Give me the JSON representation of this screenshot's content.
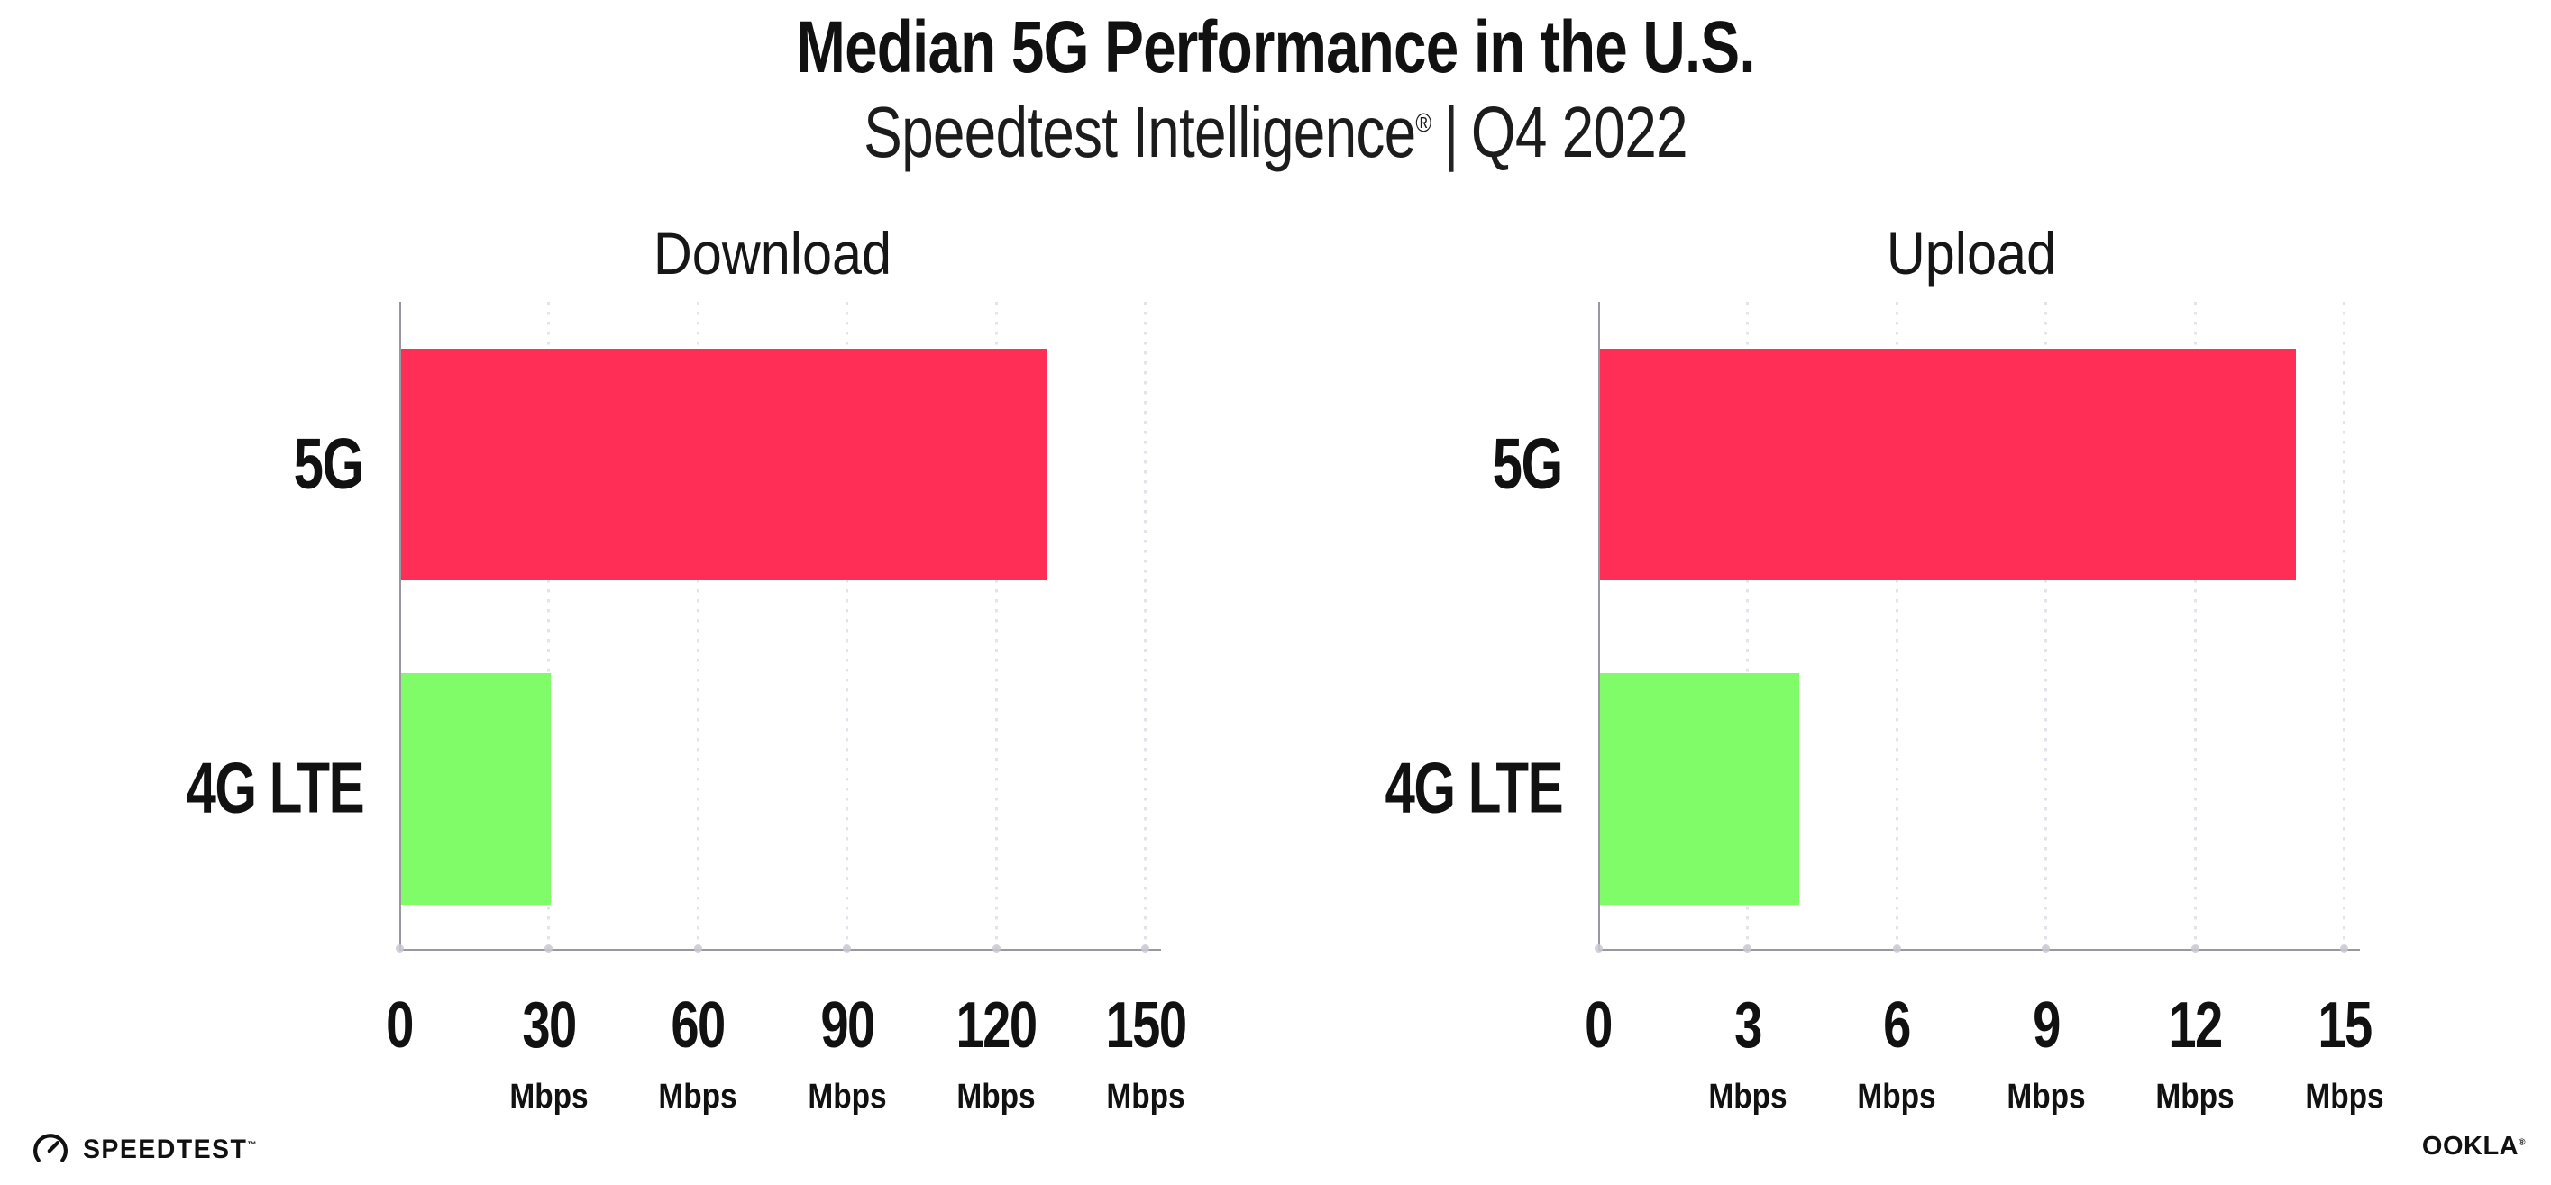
{
  "header": {
    "title": "Median 5G Performance in the U.S.",
    "subtitle": {
      "brand": "Speedtest Intelligence",
      "registered": "®",
      "separator": "|",
      "period": "Q4 2022"
    }
  },
  "chart_data": [
    {
      "type": "bar",
      "orientation": "horizontal",
      "title": "Download",
      "categories": [
        "5G",
        "4G LTE"
      ],
      "values": [
        130,
        30
      ],
      "unit": "Mbps",
      "xlim": [
        0,
        150
      ],
      "xticks": [
        0,
        30,
        60,
        90,
        120,
        150
      ],
      "tick_unit_label": "Mbps",
      "bar_colors": [
        "#FF2E56",
        "#80FC68"
      ],
      "grid": "vertical-dotted",
      "legend": "none"
    },
    {
      "type": "bar",
      "orientation": "horizontal",
      "title": "Upload",
      "categories": [
        "5G",
        "4G LTE"
      ],
      "values": [
        14,
        4
      ],
      "unit": "Mbps",
      "xlim": [
        0,
        15
      ],
      "xticks": [
        0,
        3,
        6,
        9,
        12,
        15
      ],
      "tick_unit_label": "Mbps",
      "bar_colors": [
        "#FF2E56",
        "#80FC68"
      ],
      "grid": "vertical-dotted",
      "legend": "none"
    }
  ],
  "footer": {
    "speedtest": {
      "label": "SPEEDTEST",
      "trademark": "™",
      "icon": "speedtest-gauge-icon"
    },
    "ookla": {
      "label": "OOKLA",
      "registered": "®"
    }
  },
  "colors": {
    "bar_5g": "#FF2E56",
    "bar_4g_lte": "#80FC68",
    "axis": "#98989E",
    "gridline": "#E3E3ED",
    "text": "#111111"
  }
}
